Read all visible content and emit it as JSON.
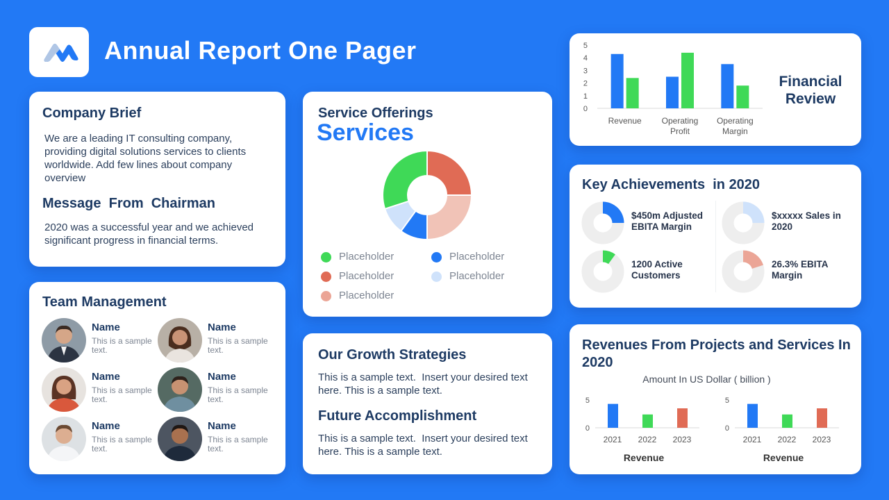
{
  "header": {
    "title": "Annual Report One Pager"
  },
  "company_brief": {
    "heading": "Company Brief",
    "text": "We are a leading IT consulting company, providing digital solutions services to clients worldwide. Add few lines about company overview",
    "chairman_heading": "Message  From  Chairman",
    "chairman_text": "2020 was a successful year and we achieved significant progress in financial terms."
  },
  "team": {
    "heading": "Team Management",
    "members": [
      {
        "name": "Name",
        "desc": "This is a sample text."
      },
      {
        "name": "Name",
        "desc": "This is a sample text."
      },
      {
        "name": "Name",
        "desc": "This is a sample text."
      },
      {
        "name": "Name",
        "desc": "This is a sample text."
      },
      {
        "name": "Name",
        "desc": "This is a sample text."
      },
      {
        "name": "Name",
        "desc": "This is a sample text."
      }
    ]
  },
  "services": {
    "heading": "Service Offerings",
    "big_label": "Services",
    "legend": [
      "Placeholder",
      "Placeholder",
      "Placeholder",
      "Placeholder",
      "Placeholder"
    ]
  },
  "growth": {
    "heading": "Our Growth Strategies",
    "text": "This is a sample text.  Insert your desired text here. This is a sample text.",
    "future_heading": "Future Accomplishment",
    "future_text": "This is a sample text.  Insert your desired text here. This is a sample text."
  },
  "financial": {
    "title": "Financial Review"
  },
  "achievements": {
    "heading": "Key Achievements  in 2020",
    "items": [
      {
        "text": "$450m Adjusted EBITA Margin",
        "fraction": 0.25,
        "color": "#2279f5"
      },
      {
        "text": "$xxxxx Sales in 2020",
        "fraction": 0.25,
        "color": "#cfe2fb"
      },
      {
        "text": "1200 Active Customers",
        "fraction": 0.1,
        "color": "#3fd957"
      },
      {
        "text": "26.3% EBITA Margin",
        "fraction": 0.2,
        "color": "#eba596"
      }
    ]
  },
  "revenue": {
    "heading": "Revenues From Projects and Services In 2020",
    "subtitle": "Amount In US Dollar ( billion )"
  },
  "colors": {
    "background": "#2279f5",
    "blue": "#2279f5",
    "green": "#3fd957",
    "red": "#e06b55",
    "pink": "#f1c3b7",
    "light_blue": "#cfe2fb",
    "salmon": "#eba596",
    "track": "#eeeeee"
  },
  "chart_data": [
    {
      "type": "donut",
      "slices": [
        {
          "value": 25,
          "color": "#e06b55"
        },
        {
          "value": 25,
          "color": "#f1c3b7"
        },
        {
          "value": 10,
          "color": "#2279f5"
        },
        {
          "value": 10,
          "color": "#cfe2fb"
        },
        {
          "value": 30,
          "color": "#3fd957"
        }
      ]
    },
    {
      "type": "bar",
      "title": "Financial Review",
      "categories": [
        "Revenue",
        "Operating Profit",
        "Operating Margin"
      ],
      "category_lines": [
        [
          "Revenue"
        ],
        [
          "Operating",
          "Profit"
        ],
        [
          "Operating",
          "Margin"
        ]
      ],
      "series": [
        {
          "values": [
            4.3,
            2.5,
            3.5
          ],
          "color": "#2279f5"
        },
        {
          "values": [
            2.4,
            4.4,
            1.8
          ],
          "color": "#3fd957"
        }
      ],
      "ylim": [
        0,
        5
      ],
      "yticks": [
        0,
        1,
        2,
        3,
        4,
        5
      ]
    },
    {
      "type": "bar",
      "xlabel": "Revenue",
      "categories": [
        "2021",
        "2022",
        "2023"
      ],
      "values": [
        4.3,
        2.4,
        3.5
      ],
      "colors": [
        "#2279f5",
        "#3fd957",
        "#e06b55"
      ],
      "ylim": [
        0,
        5
      ],
      "yticks": [
        0,
        5
      ]
    },
    {
      "type": "bar",
      "xlabel": "Revenue",
      "categories": [
        "2021",
        "2022",
        "2023"
      ],
      "values": [
        4.3,
        2.4,
        3.5
      ],
      "colors": [
        "#2279f5",
        "#3fd957",
        "#e06b55"
      ],
      "ylim": [
        0,
        5
      ],
      "yticks": [
        0,
        5
      ]
    }
  ]
}
